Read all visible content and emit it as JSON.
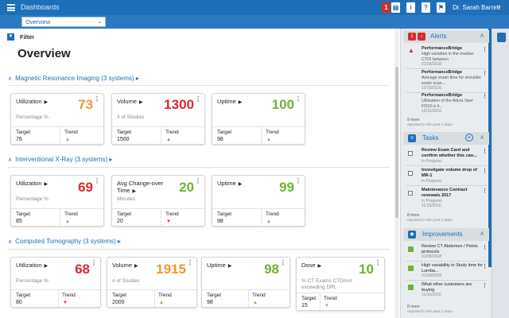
{
  "topbar": {
    "app_title": "Dashboards",
    "alert_count": "1",
    "info_label": "i",
    "help_label": "?",
    "user_name": "Dr. Sarah Barrett",
    "brand_color": "#1e6fb8"
  },
  "subbar": {
    "view_select": "Overview"
  },
  "filter": {
    "label": "Filter"
  },
  "page": {
    "title": "Overview"
  },
  "sections": [
    {
      "title": "Magnetic Resonance Imaging (3 systems)",
      "cards": [
        {
          "name": "Utilization",
          "value": "73",
          "value_color": "#f0972a",
          "unit": "Percentage %",
          "target_label": "Target",
          "target": "76",
          "trend_label": "Trend",
          "trend": "up"
        },
        {
          "name": "Volume",
          "value": "1300",
          "value_color": "#d62b2b",
          "unit": "# of Studies",
          "target_label": "Target",
          "target": "1500",
          "trend_label": "Trend",
          "trend": "up"
        },
        {
          "name": "Uptime",
          "value": "100",
          "value_color": "#6fb33a",
          "unit": "",
          "target_label": "Target",
          "target": "98",
          "trend_label": "Trend",
          "trend": "up"
        }
      ]
    },
    {
      "title": "Interventional X-Ray (3 systems)",
      "cards": [
        {
          "name": "Utilization",
          "value": "69",
          "value_color": "#d62b2b",
          "unit": "Percentage %",
          "target_label": "Target",
          "target": "85",
          "trend_label": "Trend",
          "trend": "up"
        },
        {
          "name": "Avg Change-over Time",
          "value": "20",
          "value_color": "#6fb33a",
          "unit": "Minutes",
          "target_label": "Target",
          "target": "20",
          "trend_label": "Trend",
          "trend": "down"
        },
        {
          "name": "Uptime",
          "value": "99",
          "value_color": "#6fb33a",
          "unit": "",
          "target_label": "Target",
          "target": "98",
          "trend_label": "Trend",
          "trend": "up"
        }
      ]
    },
    {
      "title": "Computed Tomography (3 systems)",
      "cards": [
        {
          "name": "Utilization",
          "value": "68",
          "value_color": "#d62b2b",
          "unit": "Percentage %",
          "target_label": "Target",
          "target": "80",
          "trend_label": "Trend",
          "trend": "down"
        },
        {
          "name": "Volume",
          "value": "1915",
          "value_color": "#f0972a",
          "unit": "# of Studies",
          "target_label": "Target",
          "target": "2000",
          "trend_label": "Trend",
          "trend": "up"
        },
        {
          "name": "Uptime",
          "value": "98",
          "value_color": "#6fb33a",
          "unit": "",
          "target_label": "Target",
          "target": "98",
          "trend_label": "Trend",
          "trend": "up"
        },
        {
          "name": "Dose",
          "value": "10",
          "value_color": "#6fb33a",
          "unit": "% CT Exams CTDIvol exceeding DRL",
          "target_label": "Target",
          "target": "15",
          "trend_label": "Trend",
          "trend": "down-green"
        }
      ]
    }
  ],
  "panel": {
    "alerts": {
      "count": "1",
      "title": "Alerts",
      "items": [
        {
          "title": "PerformanceBridge",
          "text": "High variation in the median CTDI between",
          "date": "01/09/2018"
        },
        {
          "title": "PerformanceBridge",
          "text": "Average exam time for shoulder exam scan...",
          "date": "12/18/2016"
        },
        {
          "title": "PerformanceBridge",
          "text": "Utilization of the Allura Xper FD10 is li...",
          "date": "12/12/2016"
        }
      ],
      "more": "9 more",
      "more_note": "reported in the past 2 days"
    },
    "tasks": {
      "title": "Tasks",
      "items": [
        {
          "title": "Review Exam Card and confirm whether this can...",
          "status": "In Progress"
        },
        {
          "title": "Investigate volume drop of MR-1",
          "status": "In Progress"
        },
        {
          "title": "Maintenance Contract renewals 2017",
          "status": "In Progress",
          "date": "11/15/2016"
        }
      ],
      "more": "8 more",
      "more_note": "reported in the past 2 days"
    },
    "improvements": {
      "title": "Improvements",
      "items": [
        {
          "title": "Review CT Abdomen / Pelvis protocols",
          "date": "01/09/2018"
        },
        {
          "title": "High variability in Study time for Lumba...",
          "date": "01/09/2018"
        },
        {
          "title": "What other customers are buying",
          "date": "11/16/2016"
        }
      ],
      "more": "8 more",
      "more_note": "reported in the past 2 days"
    }
  }
}
